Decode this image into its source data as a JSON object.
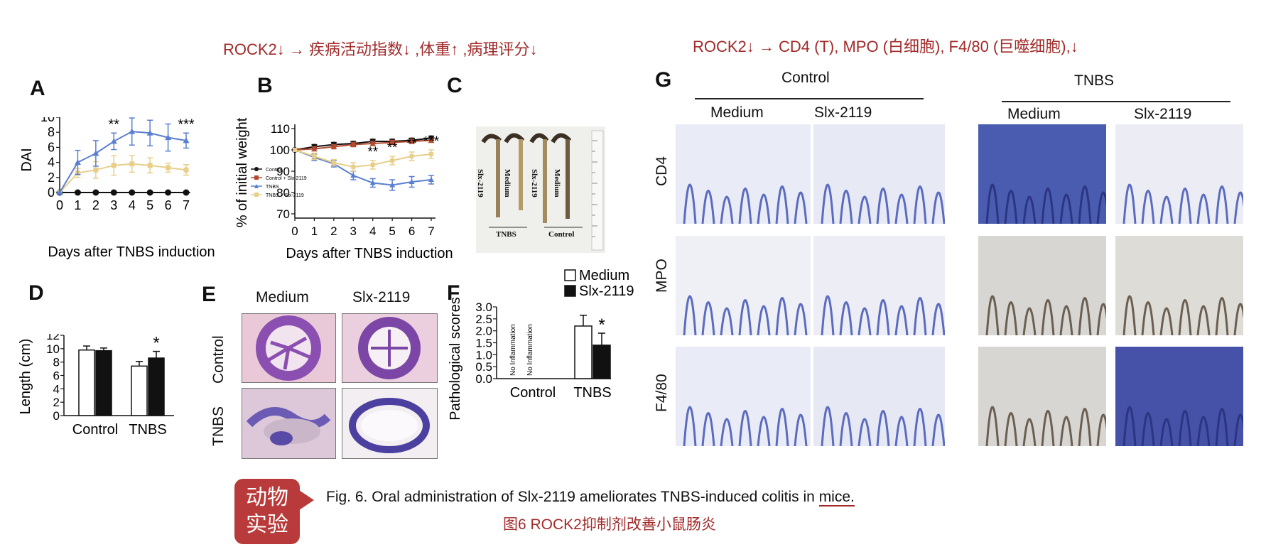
{
  "header": {
    "left": "ROCK2↓ → 疾病活动指数↓ ,体重↑ ,病理评分↓",
    "right": "ROCK2↓ → CD4 (T), MPO (白细胞), F4/80 (巨噬细胞),↓"
  },
  "panels": {
    "A": "A",
    "B": "B",
    "C": "C",
    "D": "D",
    "E": "E",
    "F": "F",
    "G": "G"
  },
  "panel_c": {
    "labels": [
      "Slx-2119",
      "Medium",
      "Slx-2119",
      "Medium"
    ],
    "groups": [
      "TNBS",
      "Control"
    ]
  },
  "panel_e": {
    "cols": [
      "Medium",
      "Slx-2119"
    ],
    "rows": [
      "Control",
      "TNBS"
    ]
  },
  "panel_g": {
    "groups": [
      "Control",
      "TNBS"
    ],
    "cols": [
      "Medium",
      "Slx-2119",
      "Medium",
      "Slx-2119"
    ],
    "rows": [
      "CD4",
      "MPO",
      "F4/80"
    ]
  },
  "badge": {
    "line1": "动物",
    "line2": "实验"
  },
  "caption": {
    "en_prefix": "Fig. 6. Oral administration of Slx-2119 ameliorates TNBS-induced colitis in ",
    "en_mice": "mice.",
    "zh": "图6 ROCK2抑制剂改善小鼠肠炎"
  },
  "colors": {
    "red": "#a22a2a",
    "blue": "#5a7fd0",
    "yellow": "#e7cf8a",
    "brown": "#b24a30",
    "black": "#111111",
    "tissue_blue": "#3e4ca8",
    "he_purple": "#8a4fb0"
  },
  "chart_data": [
    {
      "id": "A",
      "type": "line",
      "xlabel": "Days after TNBS induction",
      "ylabel": "DAI",
      "x": [
        0,
        1,
        2,
        3,
        4,
        5,
        6,
        7
      ],
      "ylim": [
        0,
        10
      ],
      "yticks": [
        0,
        2,
        4,
        6,
        8,
        10
      ],
      "series": [
        {
          "color": "black",
          "values": [
            0,
            0,
            0,
            0,
            0,
            0,
            0,
            0
          ],
          "err": [
            0,
            0,
            0,
            0,
            0,
            0,
            0,
            0
          ]
        },
        {
          "color": "yellow",
          "values": [
            0,
            2.6,
            3,
            3.6,
            3.8,
            3.6,
            3.3,
            3
          ],
          "err": [
            0,
            0.6,
            1.1,
            1.3,
            1.1,
            1,
            0.6,
            0.7
          ]
        },
        {
          "color": "blue",
          "values": [
            0,
            4,
            5.2,
            6.8,
            8.1,
            7.9,
            7.3,
            6.9
          ],
          "err": [
            0,
            1.6,
            1.7,
            1.1,
            1.8,
            1.7,
            1.8,
            1
          ]
        }
      ],
      "sig": [
        "",
        "",
        "",
        "**",
        "**",
        "**",
        "**",
        "***"
      ]
    },
    {
      "id": "B",
      "type": "line",
      "xlabel": "Days after TNBS induction",
      "ylabel": "% of initial weight",
      "x": [
        0,
        1,
        2,
        3,
        4,
        5,
        6,
        7
      ],
      "ylim": [
        68,
        112
      ],
      "yticks": [
        70,
        80,
        90,
        100,
        110
      ],
      "legend": [
        "Control",
        "Control + Slx-2119",
        "TNBS",
        "TNBS + Slx-2119"
      ],
      "series": [
        {
          "name": "Control",
          "color": "black",
          "values": [
            100,
            101.5,
            102.5,
            103,
            104,
            104,
            104.5,
            105.5
          ],
          "err": [
            0,
            1,
            1,
            1,
            1,
            1,
            1,
            1
          ]
        },
        {
          "name": "Control + Slx-2119",
          "color": "brown",
          "values": [
            100,
            100.5,
            101.5,
            102.5,
            103,
            103.5,
            104,
            104.5
          ],
          "err": [
            0,
            1,
            1,
            1,
            1,
            1,
            1,
            1
          ]
        },
        {
          "name": "TNBS",
          "color": "blue",
          "values": [
            100,
            96.5,
            93.5,
            88,
            84.5,
            83.5,
            85,
            86
          ],
          "err": [
            0,
            1.5,
            1.5,
            2,
            2,
            2.5,
            2.5,
            2
          ]
        },
        {
          "name": "TNBS + Slx-2119",
          "color": "yellow",
          "values": [
            100,
            97,
            94,
            92,
            93,
            95,
            97,
            98
          ],
          "err": [
            0,
            1.5,
            1.5,
            2,
            2,
            2,
            2,
            2
          ]
        }
      ],
      "sig": [
        "",
        "",
        "",
        "",
        "**",
        "**",
        "**",
        "***"
      ]
    },
    {
      "id": "D",
      "type": "bar",
      "ylabel": "Length (cm)",
      "categories": [
        "Control",
        "TNBS"
      ],
      "ylim": [
        0,
        12
      ],
      "yticks": [
        0,
        2,
        4,
        6,
        8,
        10,
        12
      ],
      "series": [
        {
          "name": "Medium",
          "values": [
            9.8,
            7.4
          ],
          "err": [
            0.6,
            0.7
          ]
        },
        {
          "name": "Slx-2119",
          "values": [
            9.7,
            8.6
          ],
          "err": [
            0.4,
            1
          ]
        }
      ],
      "sig": [
        "",
        "*"
      ]
    },
    {
      "id": "F",
      "type": "bar",
      "ylabel": "Pathological scores",
      "categories": [
        "Control",
        "TNBS"
      ],
      "ylim": [
        0,
        3
      ],
      "yticks": [
        "0.0",
        "0.5",
        "1.0",
        "1.5",
        "2.0",
        "2.5",
        "3.0"
      ],
      "legend": [
        "Medium",
        "Slx-2119"
      ],
      "no_inflammation": "No Inflammation",
      "series": [
        {
          "name": "Medium",
          "values": [
            0,
            2.2
          ],
          "err": [
            0,
            0.45
          ]
        },
        {
          "name": "Slx-2119",
          "values": [
            0,
            1.4
          ],
          "err": [
            0,
            0.5
          ]
        }
      ],
      "sig": [
        "",
        "*"
      ]
    }
  ]
}
